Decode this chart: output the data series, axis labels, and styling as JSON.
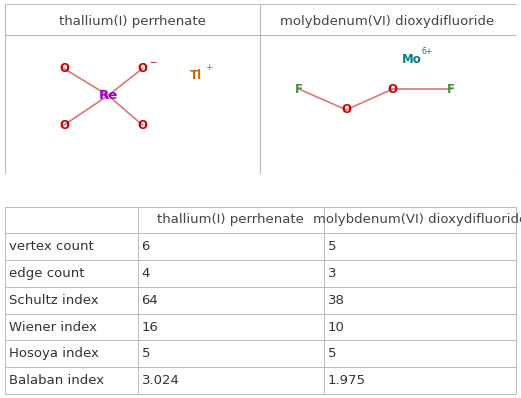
{
  "col_headers_display": [
    "",
    "thallium(I) perrhenate",
    "molybdenum(VI) dioxydifluoride"
  ],
  "row_labels": [
    "vertex count",
    "edge count",
    "Schultz index",
    "Wiener index",
    "Hosoya index",
    "Balaban index"
  ],
  "col1_values": [
    "6",
    "4",
    "64",
    "16",
    "5",
    "3.024"
  ],
  "col2_values": [
    "5",
    "3",
    "38",
    "10",
    "5",
    "1.975"
  ],
  "background_color": "#ffffff",
  "header_text_color": "#444444",
  "cell_text_color": "#333333",
  "row_label_color": "#333333",
  "grid_color": "#bbbbbb",
  "font_size": 9.5,
  "header_font_size": 9.5,
  "title1": "thallium(I) perrhenate",
  "title2": "molybdenum(VI) dioxydifluoride",
  "Re_color": "#9400d3",
  "O_color": "#cc0000",
  "Tl_color": "#cc6600",
  "Mo_color": "#008080",
  "F_color": "#4a8a4a",
  "bond_color": "#dd7777"
}
